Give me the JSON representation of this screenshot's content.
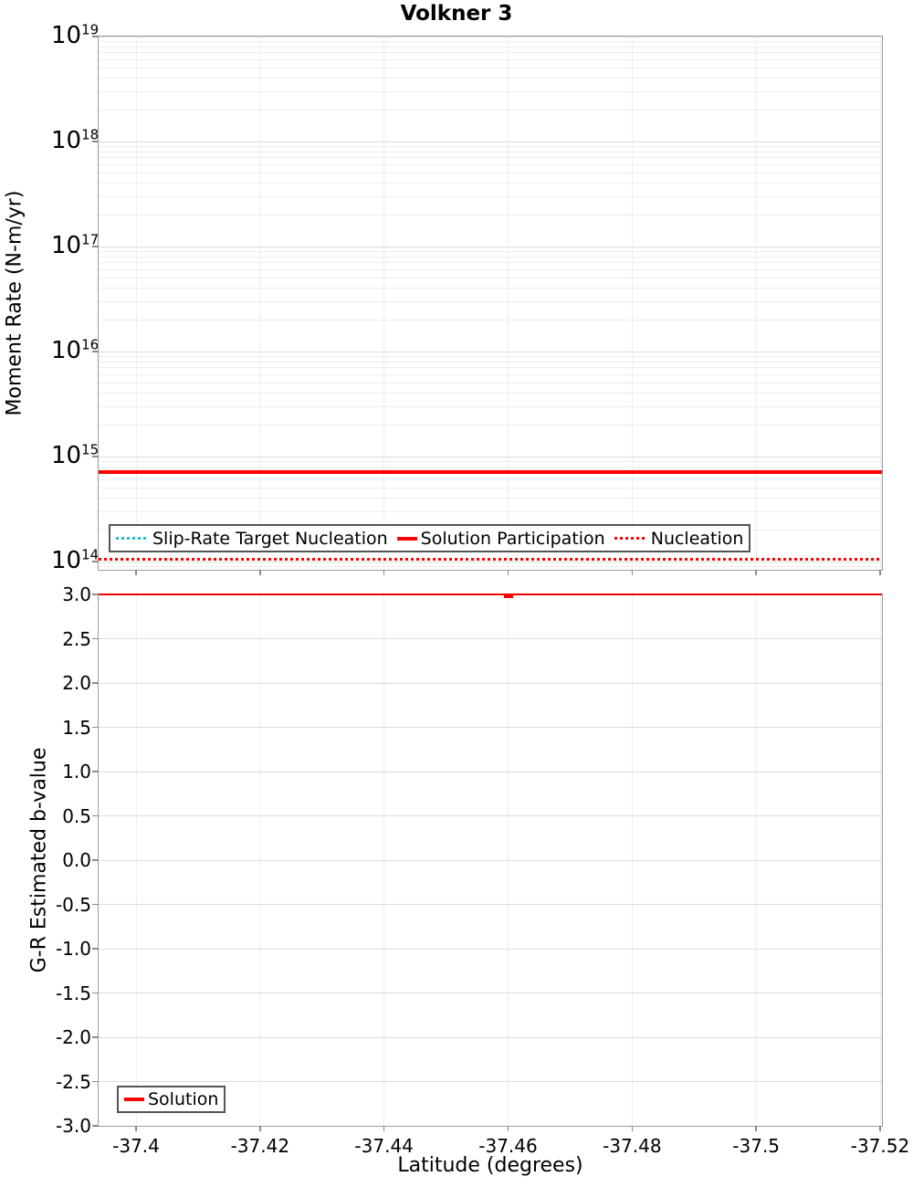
{
  "title": "Volkner 3",
  "xlabel": "Latitude (degrees)",
  "x_ticks": [
    {
      "value": -37.4,
      "label": "-37.4"
    },
    {
      "value": -37.42,
      "label": "-37.42"
    },
    {
      "value": -37.44,
      "label": "-37.44"
    },
    {
      "value": -37.46,
      "label": "-37.46"
    },
    {
      "value": -37.48,
      "label": "-37.48"
    },
    {
      "value": -37.5,
      "label": "-37.5"
    },
    {
      "value": -37.52,
      "label": "-37.52"
    }
  ],
  "panel_moment_rate": {
    "ylabel": "Moment Rate (N-m/yr)",
    "y_tick_exponents": [
      19,
      18,
      17,
      16,
      15,
      14
    ],
    "legend": [
      {
        "label": "Slip-Rate Target Nucleation",
        "color": "#1fbecb",
        "style": "dotted"
      },
      {
        "label": "Solution Participation",
        "color": "#ff0000",
        "style": "solid"
      },
      {
        "label": "Nucleation",
        "color": "#ff0000",
        "style": "dotted"
      }
    ]
  },
  "panel_b_value": {
    "ylabel": "G-R Estimated b-value",
    "y_ticks": [
      {
        "value": 3.0,
        "label": "3.0"
      },
      {
        "value": 2.5,
        "label": "2.5"
      },
      {
        "value": 2.0,
        "label": "2.0"
      },
      {
        "value": 1.5,
        "label": "1.5"
      },
      {
        "value": 1.0,
        "label": "1.0"
      },
      {
        "value": 0.5,
        "label": "0.5"
      },
      {
        "value": 0.0,
        "label": "0.0"
      },
      {
        "value": -0.5,
        "label": "-0.5"
      },
      {
        "value": -1.0,
        "label": "-1.0"
      },
      {
        "value": -1.5,
        "label": "-1.5"
      },
      {
        "value": -2.0,
        "label": "-2.0"
      },
      {
        "value": -2.5,
        "label": "-2.5"
      },
      {
        "value": -3.0,
        "label": "-3.0"
      }
    ],
    "legend": [
      {
        "label": "Solution",
        "color": "#ff0000",
        "style": "solid"
      }
    ]
  },
  "colors": {
    "red": "#ff0000",
    "cyan": "#1fbecb",
    "grid_major": "#dcdcdc",
    "grid_minor": "#ededed",
    "axis_border": "#9b9b9b",
    "tick": "#8a8a8a",
    "legend_border": "#545454"
  },
  "chart_data": [
    {
      "type": "line",
      "title": "Volkner 3",
      "xlabel": "Latitude (degrees)",
      "ylabel": "Moment Rate (N-m/yr)",
      "yscale": "log",
      "ylim": [
        84000000000000.0,
        1e+19
      ],
      "xlim": [
        -37.394,
        -37.521
      ],
      "x_axis_reversed": true,
      "x_tick_values": [
        -37.4,
        -37.42,
        -37.44,
        -37.46,
        -37.48,
        -37.5,
        -37.52
      ],
      "grid": true,
      "legend_position": "bottom-left-inside",
      "series": [
        {
          "name": "Slip-Rate Target Nucleation",
          "style": "dotted",
          "color": "#1fbecb",
          "constant_y": 106000000000000.0,
          "x_range": [
            -37.394,
            -37.521
          ],
          "note": "flat line, exactly coincident with and hidden beneath the Nucleation line"
        },
        {
          "name": "Solution Participation",
          "style": "solid",
          "color": "#ff0000",
          "constant_y": 710000000000000.0,
          "x_range": [
            -37.394,
            -37.521
          ],
          "note": "flat line at ~7.1e14 N-m/yr"
        },
        {
          "name": "Nucleation",
          "style": "dotted",
          "color": "#ff0000",
          "constant_y": 106000000000000.0,
          "x_range": [
            -37.394,
            -37.521
          ],
          "note": "flat line at ~1.06e14 N-m/yr"
        }
      ]
    },
    {
      "type": "line",
      "xlabel": "Latitude (degrees)",
      "ylabel": "G-R Estimated b-value",
      "ylim": [
        -3.0,
        3.0
      ],
      "y_tick_step": 0.5,
      "xlim": [
        -37.394,
        -37.521
      ],
      "x_axis_reversed": true,
      "x_tick_values": [
        -37.4,
        -37.42,
        -37.44,
        -37.46,
        -37.48,
        -37.5,
        -37.52
      ],
      "grid": true,
      "legend_position": "bottom-left-inside",
      "series": [
        {
          "name": "Solution",
          "style": "solid",
          "color": "#ff0000",
          "constant_y": 3.0,
          "x_range": [
            -37.394,
            -37.521
          ],
          "note": "flat at b-value 3.0 (top of axis) with a tiny dip near latitude -37.46"
        }
      ]
    }
  ]
}
